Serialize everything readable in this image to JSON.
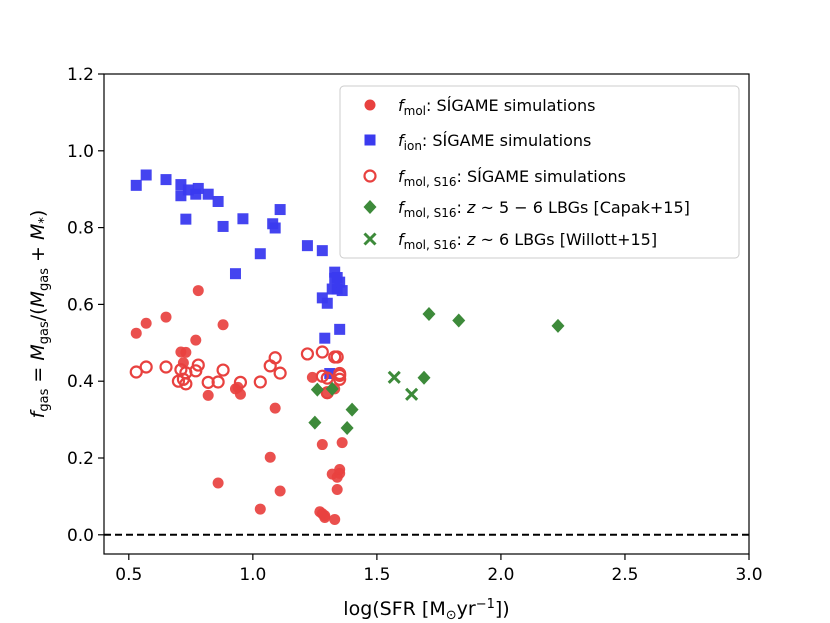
{
  "chart_data": {
    "type": "scatter",
    "xlabel": "log(SFR [M⊙yr⁻¹])",
    "ylabel": "f_gas = M_gas/(M_gas + M_*)",
    "xlim": [
      0.4,
      3.0
    ],
    "ylim": [
      -0.05,
      1.2
    ],
    "xticks": [
      "0.5",
      "1.0",
      "1.5",
      "2.0",
      "2.5",
      "3.0"
    ],
    "yticks": [
      "0.0",
      "0.2",
      "0.4",
      "0.6",
      "0.8",
      "1.0",
      "1.2"
    ],
    "grid": false,
    "legend_position": "top-right",
    "reference_line": {
      "y": 0.0,
      "style": "dashed",
      "color": "#000000"
    },
    "series": [
      {
        "name": "f_mol: SÍGAME simulations",
        "marker": "circle-filled",
        "color": "#e8413f",
        "points": [
          [
            0.53,
            0.525
          ],
          [
            0.57,
            0.551
          ],
          [
            0.65,
            0.567
          ],
          [
            0.71,
            0.476
          ],
          [
            0.72,
            0.448
          ],
          [
            0.73,
            0.475
          ],
          [
            0.77,
            0.507
          ],
          [
            0.78,
            0.636
          ],
          [
            0.82,
            0.363
          ],
          [
            0.88,
            0.547
          ],
          [
            0.86,
            0.135
          ],
          [
            0.93,
            0.38
          ],
          [
            0.94,
            0.384
          ],
          [
            0.95,
            0.366
          ],
          [
            1.03,
            0.067
          ],
          [
            1.07,
            0.202
          ],
          [
            1.09,
            0.33
          ],
          [
            1.11,
            0.114
          ],
          [
            1.24,
            0.41
          ],
          [
            1.27,
            0.06
          ],
          [
            1.28,
            0.055
          ],
          [
            1.29,
            0.045
          ],
          [
            1.28,
            0.235
          ],
          [
            1.3,
            0.37
          ],
          [
            1.32,
            0.158
          ],
          [
            1.33,
            0.04
          ],
          [
            1.34,
            0.118
          ],
          [
            1.34,
            0.15
          ],
          [
            1.35,
            0.16
          ],
          [
            1.35,
            0.17
          ],
          [
            1.36,
            0.24
          ],
          [
            1.29,
            0.05
          ],
          [
            1.33,
            0.38
          ]
        ]
      },
      {
        "name": "f_ion: SÍGAME simulations",
        "marker": "square-filled",
        "color": "#3a3aef",
        "points": [
          [
            0.53,
            0.91
          ],
          [
            0.57,
            0.937
          ],
          [
            0.65,
            0.925
          ],
          [
            0.71,
            0.912
          ],
          [
            0.71,
            0.883
          ],
          [
            0.73,
            0.822
          ],
          [
            0.74,
            0.898
          ],
          [
            0.77,
            0.887
          ],
          [
            0.78,
            0.902
          ],
          [
            0.82,
            0.887
          ],
          [
            0.86,
            0.868
          ],
          [
            0.88,
            0.803
          ],
          [
            0.93,
            0.68
          ],
          [
            0.96,
            0.823
          ],
          [
            1.03,
            0.732
          ],
          [
            1.08,
            0.81
          ],
          [
            1.09,
            0.799
          ],
          [
            1.11,
            0.847
          ],
          [
            1.22,
            0.753
          ],
          [
            1.28,
            0.74
          ],
          [
            1.28,
            0.617
          ],
          [
            1.29,
            0.512
          ],
          [
            1.3,
            0.603
          ],
          [
            1.31,
            0.42
          ],
          [
            1.32,
            0.64
          ],
          [
            1.33,
            0.668
          ],
          [
            1.33,
            0.684
          ],
          [
            1.34,
            0.67
          ],
          [
            1.34,
            0.64
          ],
          [
            1.35,
            0.658
          ],
          [
            1.35,
            0.535
          ],
          [
            1.36,
            0.636
          ]
        ]
      },
      {
        "name": "f_mol,S16: SÍGAME simulations",
        "marker": "circle-open",
        "color": "#e8413f",
        "points": [
          [
            0.53,
            0.424
          ],
          [
            0.57,
            0.437
          ],
          [
            0.65,
            0.437
          ],
          [
            0.7,
            0.4
          ],
          [
            0.71,
            0.43
          ],
          [
            0.72,
            0.405
          ],
          [
            0.73,
            0.393
          ],
          [
            0.73,
            0.422
          ],
          [
            0.77,
            0.427
          ],
          [
            0.78,
            0.442
          ],
          [
            0.82,
            0.397
          ],
          [
            0.86,
            0.398
          ],
          [
            0.88,
            0.429
          ],
          [
            0.95,
            0.397
          ],
          [
            1.03,
            0.398
          ],
          [
            1.07,
            0.44
          ],
          [
            1.09,
            0.461
          ],
          [
            1.11,
            0.421
          ],
          [
            1.22,
            0.471
          ],
          [
            1.28,
            0.476
          ],
          [
            1.28,
            0.413
          ],
          [
            1.3,
            0.408
          ],
          [
            1.3,
            0.37
          ],
          [
            1.33,
            0.463
          ],
          [
            1.34,
            0.463
          ],
          [
            1.35,
            0.42
          ],
          [
            1.35,
            0.405
          ],
          [
            1.35,
            0.415
          ]
        ]
      },
      {
        "name": "f_mol,S16: z ~ 5 − 6 LBGs [Capak+15]",
        "marker": "diamond-filled",
        "color": "#3d8a3a",
        "points": [
          [
            1.25,
            0.292
          ],
          [
            1.26,
            0.378
          ],
          [
            1.32,
            0.38
          ],
          [
            1.38,
            0.278
          ],
          [
            1.4,
            0.326
          ],
          [
            1.69,
            0.409
          ],
          [
            1.71,
            0.575
          ],
          [
            1.83,
            0.558
          ],
          [
            2.23,
            0.544
          ]
        ]
      },
      {
        "name": "f_mol,S16: z ~ 6 LBGs [Willott+15]",
        "marker": "x",
        "color": "#3d8a3a",
        "points": [
          [
            1.57,
            0.41
          ],
          [
            1.64,
            0.366
          ]
        ]
      }
    ]
  }
}
